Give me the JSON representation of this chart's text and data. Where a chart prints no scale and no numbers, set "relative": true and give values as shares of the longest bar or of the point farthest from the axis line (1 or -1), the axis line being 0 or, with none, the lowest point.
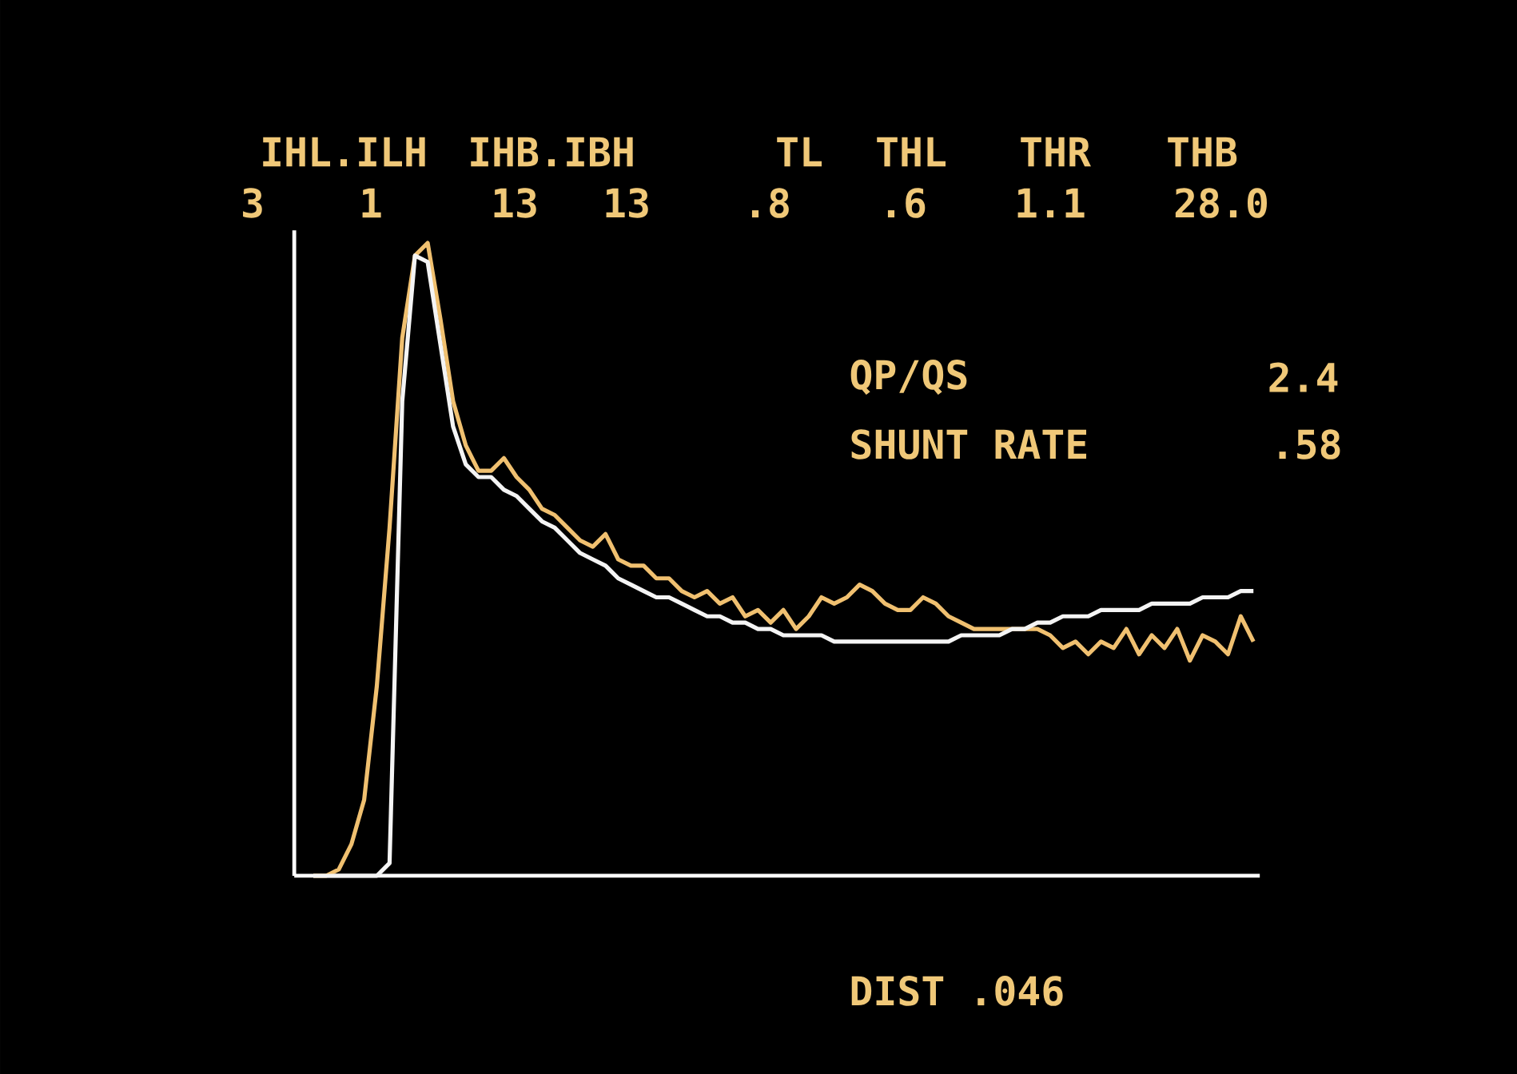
{
  "chart_data": {
    "type": "line",
    "relative": true,
    "marker": "none",
    "line_style": "solid",
    "categories": [
      null,
      null,
      null,
      null,
      null,
      null,
      null,
      null,
      null,
      null,
      null,
      null,
      null,
      null,
      null,
      null,
      null,
      null,
      null,
      null,
      null,
      null,
      null,
      null,
      null,
      null,
      null,
      null,
      null,
      null,
      null,
      null,
      null,
      null,
      null,
      null,
      null,
      null,
      null,
      null,
      null,
      null,
      null,
      null,
      null,
      null,
      null,
      null,
      null,
      null,
      null,
      null,
      null,
      null,
      null,
      null,
      null,
      null,
      null,
      null,
      null,
      null,
      null,
      null,
      null,
      null,
      null,
      null,
      null,
      null,
      null,
      null,
      null,
      null,
      null
    ],
    "series": [
      {
        "color": "#f0c070",
        "values": [
          0,
          0,
          0.01,
          0.05,
          0.12,
          0.3,
          0.55,
          0.85,
          0.98,
          1,
          0.88,
          0.75,
          0.68,
          0.64,
          0.64,
          0.66,
          0.63,
          0.61,
          0.58,
          0.57,
          0.55,
          0.53,
          0.52,
          0.54,
          0.5,
          0.49,
          0.49,
          0.47,
          0.47,
          0.45,
          0.44,
          0.45,
          0.43,
          0.44,
          0.41,
          0.42,
          0.4,
          0.42,
          0.39,
          0.41,
          0.44,
          0.43,
          0.44,
          0.46,
          0.45,
          0.43,
          0.42,
          0.42,
          0.44,
          0.43,
          0.41,
          0.4,
          0.39,
          0.39,
          0.39,
          0.39,
          0.39,
          0.39,
          0.38,
          0.36,
          0.37,
          0.35,
          0.37,
          0.36,
          0.39,
          0.35,
          0.38,
          0.36,
          0.39,
          0.34,
          0.38,
          0.37,
          0.35,
          0.41,
          0.37
        ]
      },
      {
        "color": "#f4f4f4",
        "values": [
          0,
          0,
          0,
          0,
          0,
          0,
          0.02,
          0.75,
          0.98,
          0.97,
          0.84,
          0.71,
          0.65,
          0.63,
          0.63,
          0.61,
          0.6,
          0.58,
          0.56,
          0.55,
          0.53,
          0.51,
          0.5,
          0.49,
          0.47,
          0.46,
          0.45,
          0.44,
          0.44,
          0.43,
          0.42,
          0.41,
          0.41,
          0.4,
          0.4,
          0.39,
          0.39,
          0.38,
          0.38,
          0.38,
          0.38,
          0.37,
          0.37,
          0.37,
          0.37,
          0.37,
          0.37,
          0.37,
          0.37,
          0.37,
          0.37,
          0.38,
          0.38,
          0.38,
          0.38,
          0.39,
          0.39,
          0.4,
          0.4,
          0.41,
          0.41,
          0.41,
          0.42,
          0.42,
          0.42,
          0.42,
          0.43,
          0.43,
          0.43,
          0.43,
          0.44,
          0.44,
          0.44,
          0.45,
          0.45
        ]
      }
    ],
    "annotations": [
      "IHL.ILH",
      "IHB.IBH",
      "TL",
      "THL",
      "THR",
      "THB",
      "3",
      "1",
      "13",
      "13",
      ".8",
      ".6",
      "1.1",
      "28.0",
      "QP/QS",
      "2.4",
      "SHUNT RATE",
      ".58",
      "DIST .046"
    ]
  }
}
